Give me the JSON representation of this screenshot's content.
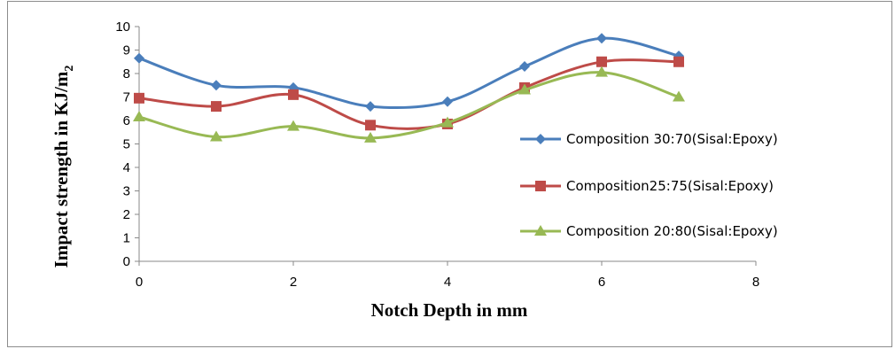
{
  "chart_data": {
    "type": "line",
    "title": "",
    "xlabel": "Notch Depth in mm",
    "ylabel": "Impact strength in KJ/m",
    "ylabel_sub": "2",
    "xlim": [
      0,
      8
    ],
    "ylim": [
      0,
      10
    ],
    "x_ticks": [
      "0",
      "2",
      "4",
      "6",
      "8"
    ],
    "y_ticks": [
      "0",
      "1",
      "2",
      "3",
      "4",
      "5",
      "6",
      "7",
      "8",
      "9",
      "10"
    ],
    "grid": false,
    "legend_position": "right",
    "smooth": true,
    "x": [
      0,
      1,
      2,
      3,
      4,
      5,
      6,
      7
    ],
    "series": [
      {
        "name": "Composition 30:70(Sisal:Epoxy)",
        "values": [
          8.65,
          7.5,
          7.4,
          6.6,
          6.8,
          8.3,
          9.5,
          8.75
        ],
        "color": "#4a7ebb",
        "marker": "diamond"
      },
      {
        "name": "Composition25:75(Sisal:Epoxy)",
        "values": [
          6.95,
          6.6,
          7.1,
          5.8,
          5.85,
          7.4,
          8.5,
          8.5
        ],
        "color": "#be4b48",
        "marker": "square"
      },
      {
        "name": "Composition 20:80(Sisal:Epoxy)",
        "values": [
          6.15,
          5.3,
          5.75,
          5.25,
          5.9,
          7.3,
          8.05,
          7.0
        ],
        "color": "#98b954",
        "marker": "triangle"
      }
    ]
  }
}
